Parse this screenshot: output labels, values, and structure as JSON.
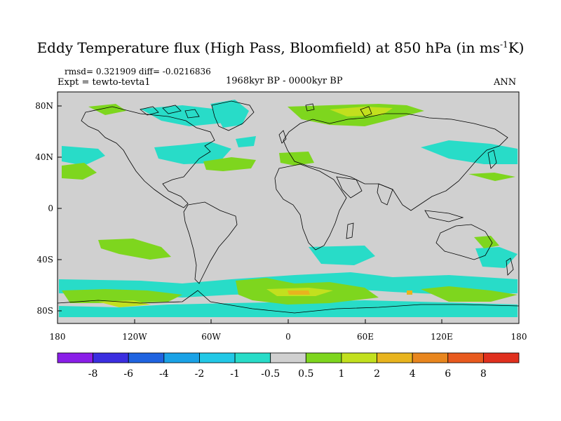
{
  "title": {
    "main": "Eddy Temperature flux (High Pass, Bloomfield) at 850 hPa (in ms",
    "sup": "-1",
    "end": "K)"
  },
  "stats": "rmsd= 0.321909 diff= -0.0216836",
  "expt": "Expt = tewto-tevta1",
  "period": "1968kyr BP - 0000kyr BP",
  "season": "ANN",
  "axes": {
    "lon_ticks": [
      "180",
      "120W",
      "60W",
      "0",
      "60E",
      "120E",
      "180"
    ],
    "lat_ticks": [
      "80N",
      "40N",
      "0",
      "40S",
      "80S"
    ]
  },
  "colorbar": {
    "colors": [
      "#8a1ee8",
      "#3b2ee0",
      "#1f63e0",
      "#1aa2e6",
      "#22c8e6",
      "#28dcc8",
      "#d0d0d0",
      "#7ed61e",
      "#c2e01e",
      "#e8b41e",
      "#e8861e",
      "#e85a1e",
      "#e0301e"
    ],
    "labels": [
      "-8",
      "-6",
      "-4",
      "-2",
      "-1",
      "-0.5",
      "0.5",
      "1",
      "2",
      "4",
      "6",
      "8"
    ]
  },
  "map_colors": {
    "ocean": "#d0d0d0",
    "positive": "#7ed61e",
    "positive_strong": "#c2e01e",
    "positive_stronger": "#e8b41e",
    "negative": "#28dcc8",
    "coast": "#000000"
  }
}
